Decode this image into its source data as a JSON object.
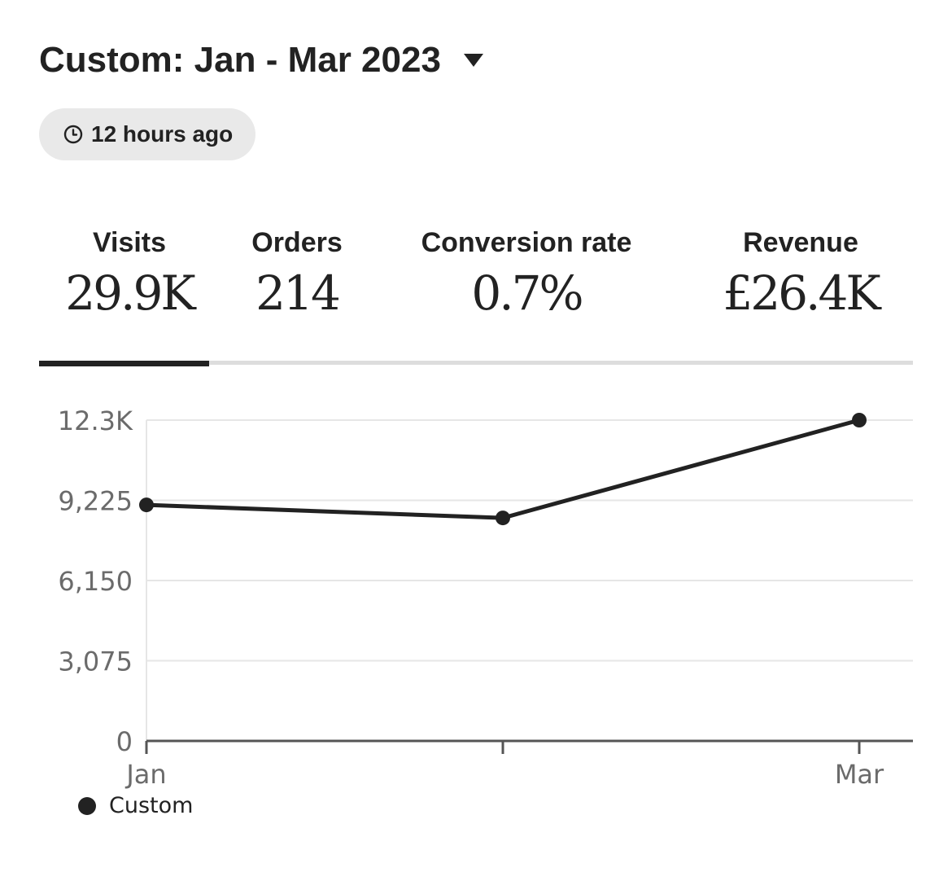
{
  "header": {
    "range_title": "Custom: Jan - Mar 2023",
    "range_dropdown_icon": "caret-down-icon",
    "updated_icon": "clock-icon",
    "updated_text": "12 hours ago"
  },
  "stats": {
    "selected": "visits",
    "visits": {
      "label": "Visits",
      "value": "29.9K"
    },
    "orders": {
      "label": "Orders",
      "value": "214"
    },
    "conversion": {
      "label": "Conversion rate",
      "value": "0.7%"
    },
    "revenue": {
      "label": "Revenue",
      "value": "£26.4K"
    }
  },
  "colors": {
    "text": "#222222",
    "pill_bg": "#e9e9e9",
    "tab_track": "#dddddd",
    "gridline": "#e6e6e6",
    "axis": "#555555",
    "tick_text": "#6b6b6b"
  },
  "chart_data": {
    "type": "line",
    "title": "",
    "xlabel": "",
    "ylabel": "",
    "x": [
      0,
      1,
      2
    ],
    "x_tick_labels": [
      "Jan",
      "",
      "Mar"
    ],
    "y_ticks": [
      0,
      3075,
      6150,
      9225,
      12300
    ],
    "y_tick_labels": [
      "0",
      "3,075",
      "6,150",
      "9,225",
      "12.3K"
    ],
    "ylim": [
      0,
      12300
    ],
    "grid": true,
    "series": [
      {
        "name": "Custom",
        "values": [
          9050,
          8550,
          12300
        ]
      }
    ],
    "legend": "bottom-left"
  },
  "legend": {
    "label": "Custom"
  }
}
